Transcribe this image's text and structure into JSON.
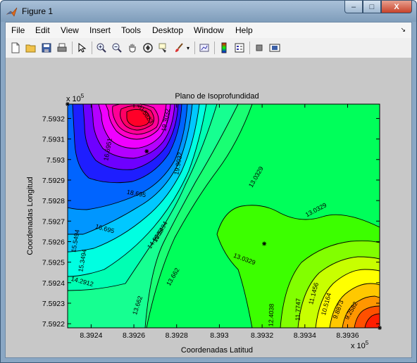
{
  "window": {
    "title": "Figure 1",
    "controls": {
      "minimize": "–",
      "maximize": "□",
      "close": "X"
    }
  },
  "menubar": {
    "items": [
      "File",
      "Edit",
      "View",
      "Insert",
      "Tools",
      "Desktop",
      "Window",
      "Help"
    ],
    "overflow_arrow": "↘"
  },
  "toolbar": {
    "icons": [
      "new-figure-icon",
      "open-file-icon",
      "save-icon",
      "print-icon",
      "pointer-icon",
      "zoom-in-icon",
      "zoom-out-icon",
      "pan-hand-icon",
      "rotate-3d-icon",
      "data-cursor-icon",
      "brush-icon",
      "link-plot-icon",
      "colorbar-icon",
      "legend-icon",
      "hide-plot-tools-icon",
      "show-plot-tools-icon"
    ]
  },
  "chart_data": {
    "type": "contour",
    "title": "Plano de Isoprofundidad",
    "xlabel": "Coordenadas Latitud",
    "ylabel": "Coordenadas Longitud",
    "x_exponent": "x 10",
    "y_exponent": "x 10",
    "exponent_power": "5",
    "xlim": [
      8.39229,
      8.39375
    ],
    "ylim": [
      7.59218,
      7.59327
    ],
    "x_ticks": [
      "8.3924",
      "8.3926",
      "8.3928",
      "8.393",
      "8.3932",
      "8.3934",
      "8.3936"
    ],
    "x_tick_values": [
      8.3924,
      8.3926,
      8.3928,
      8.393,
      8.3932,
      8.3934,
      8.3936
    ],
    "y_ticks": [
      "7.5932",
      "7.5931",
      "7.593",
      "7.5929",
      "7.5928",
      "7.5927",
      "7.5926",
      "7.5925",
      "7.5924",
      "7.5923",
      "7.5922"
    ],
    "y_tick_values": [
      7.5932,
      7.5931,
      7.593,
      7.5929,
      7.5928,
      7.5927,
      7.5926,
      7.5925,
      7.5924,
      7.5923,
      7.5922
    ],
    "contour_labels": [
      "20.5823",
      "19.3032",
      "18.695",
      "16.695",
      "15.5494",
      "15.3494",
      "14.9203",
      "14.2912",
      "13.662",
      "13.0329",
      "13.0329",
      "12.4038",
      "11.7747",
      "11.1456",
      "10.5164",
      "9.8873",
      "9.2582",
      "19.9032",
      "13.662",
      "13.0329",
      "16.6951",
      "15.5494"
    ],
    "sample_points": [
      {
        "x": 8.39266,
        "y": 7.59304
      },
      {
        "x": 8.39321,
        "y": 7.59259
      },
      {
        "x": 8.39375,
        "y": 7.59218
      },
      {
        "x": 8.39229,
        "y": 7.59327
      }
    ],
    "grid": false
  }
}
